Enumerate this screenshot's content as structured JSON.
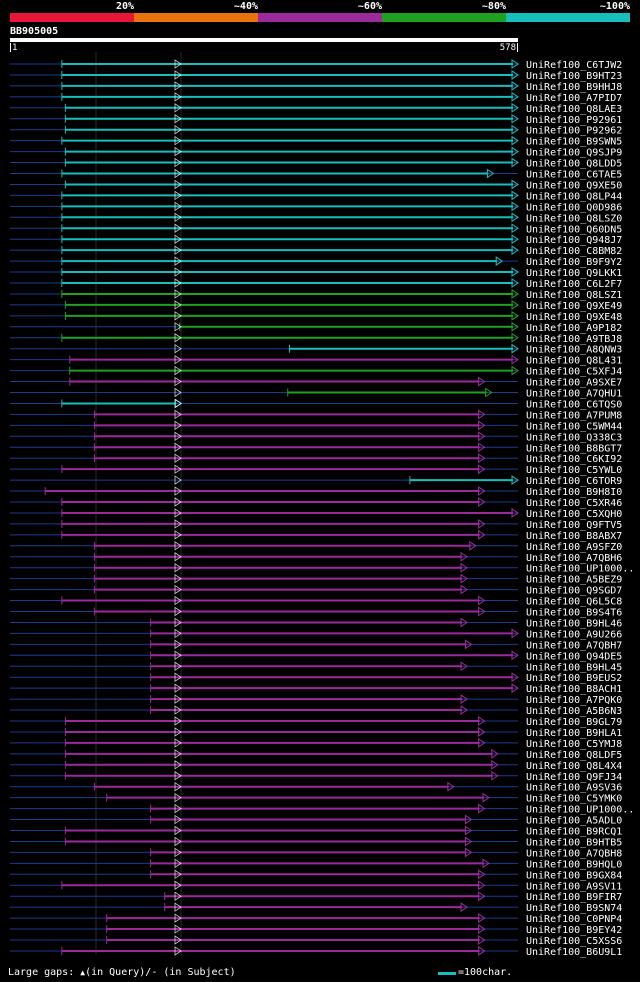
{
  "legend": [
    {
      "label": "20%",
      "color": "#e8173a"
    },
    {
      "label": "~40%",
      "color": "#e8720c"
    },
    {
      "label": "~60%",
      "color": "#9b2a9b"
    },
    {
      "label": "~80%",
      "color": "#1fa11f"
    },
    {
      "label": "~100%",
      "color": "#17bebb"
    }
  ],
  "query": {
    "id": "BB905005",
    "start": "1",
    "end": "578",
    "length": 578
  },
  "colors": {
    "cyan": "#17bebb",
    "green": "#1fa11f",
    "purple": "#9b2a9b",
    "orange": "#e8720c",
    "red": "#e8173a",
    "flank": "#1a3d8c",
    "gap_marker": "#ffe600",
    "grid": "#2a2a2a",
    "label": "#ffffff"
  },
  "hits": [
    {
      "label": "UniRef100_C6TJW2",
      "start": 59,
      "end": 578,
      "color": "cyan"
    },
    {
      "label": "UniRef100_B9HT23",
      "start": 59,
      "end": 578,
      "color": "cyan"
    },
    {
      "label": "UniRef100_B9HHJ8",
      "start": 59,
      "end": 578,
      "color": "cyan"
    },
    {
      "label": "UniRef100_A7PID7",
      "start": 59,
      "end": 578,
      "color": "cyan"
    },
    {
      "label": "UniRef100_Q8LAE3",
      "start": 63,
      "end": 578,
      "color": "cyan"
    },
    {
      "label": "UniRef100_P92961",
      "start": 63,
      "end": 578,
      "color": "cyan"
    },
    {
      "label": "UniRef100_P92962",
      "start": 63,
      "end": 578,
      "color": "cyan"
    },
    {
      "label": "UniRef100_B9SWN5",
      "start": 59,
      "end": 578,
      "color": "cyan"
    },
    {
      "label": "UniRef100_Q9SJP9",
      "start": 63,
      "end": 578,
      "color": "cyan"
    },
    {
      "label": "UniRef100_Q8LDD5",
      "start": 63,
      "end": 578,
      "color": "cyan"
    },
    {
      "label": "UniRef100_C6TAE5",
      "start": 59,
      "end": 550,
      "color": "cyan"
    },
    {
      "label": "UniRef100_Q9XE50",
      "start": 63,
      "end": 578,
      "color": "cyan"
    },
    {
      "label": "UniRef100_Q8LP44",
      "start": 59,
      "end": 578,
      "color": "cyan"
    },
    {
      "label": "UniRef100_Q0D986",
      "start": 59,
      "end": 578,
      "color": "cyan"
    },
    {
      "label": "UniRef100_Q8LSZ0",
      "start": 59,
      "end": 578,
      "color": "cyan"
    },
    {
      "label": "UniRef100_Q60DN5",
      "start": 59,
      "end": 578,
      "color": "cyan"
    },
    {
      "label": "UniRef100_Q948J7",
      "start": 59,
      "end": 578,
      "color": "cyan"
    },
    {
      "label": "UniRef100_C8BM82",
      "start": 59,
      "end": 578,
      "color": "cyan"
    },
    {
      "label": "UniRef100_B9F9Y2",
      "start": 59,
      "end": 560,
      "color": "cyan"
    },
    {
      "label": "UniRef100_Q9LKK1",
      "start": 59,
      "end": 578,
      "color": "cyan"
    },
    {
      "label": "UniRef100_C6L2F7",
      "start": 59,
      "end": 578,
      "color": "cyan"
    },
    {
      "label": "UniRef100_Q8LSZ1",
      "start": 59,
      "end": 578,
      "color": "green"
    },
    {
      "label": "UniRef100_Q9XE49",
      "start": 63,
      "end": 578,
      "color": "green"
    },
    {
      "label": "UniRef100_Q9XE48",
      "start": 63,
      "end": 578,
      "color": "green"
    },
    {
      "label": "UniRef100_A9P182",
      "start": 193,
      "end": 578,
      "color": "green"
    },
    {
      "label": "UniRef100_A9TBJ8",
      "start": 59,
      "end": 578,
      "color": "green"
    },
    {
      "label": "UniRef100_A8QNW3",
      "start": 318,
      "end": 578,
      "color": "cyan"
    },
    {
      "label": "UniRef100_Q8L431",
      "start": 68,
      "end": 578,
      "color": "purple"
    },
    {
      "label": "UniRef100_C5XFJ4",
      "start": 68,
      "end": 578,
      "color": "green"
    },
    {
      "label": "UniRef100_A9SXE7",
      "start": 68,
      "end": 540,
      "color": "purple"
    },
    {
      "label": "UniRef100_A7QHU1",
      "start": 316,
      "end": 548,
      "color": "green"
    },
    {
      "label": "UniRef100_C6TQS0",
      "start": 59,
      "end": 195,
      "color": "cyan"
    },
    {
      "label": "UniRef100_A7PUM8",
      "start": 96,
      "end": 540,
      "color": "purple"
    },
    {
      "label": "UniRef100_C5WM44",
      "start": 96,
      "end": 540,
      "color": "purple"
    },
    {
      "label": "UniRef100_Q338C3",
      "start": 96,
      "end": 540,
      "color": "purple"
    },
    {
      "label": "UniRef100_B8BGT7",
      "start": 96,
      "end": 540,
      "color": "purple"
    },
    {
      "label": "UniRef100_C6KI92",
      "start": 96,
      "end": 540,
      "color": "purple"
    },
    {
      "label": "UniRef100_C5YWL0",
      "start": 59,
      "end": 540,
      "color": "purple"
    },
    {
      "label": "UniRef100_C6TOR9",
      "start": 455,
      "end": 578,
      "color": "cyan"
    },
    {
      "label": "UniRef100_B9H8I0",
      "start": 40,
      "end": 540,
      "color": "purple"
    },
    {
      "label": "UniRef100_C5XR46",
      "start": 59,
      "end": 540,
      "color": "purple"
    },
    {
      "label": "UniRef100_C5XQH0",
      "start": 59,
      "end": 578,
      "color": "purple"
    },
    {
      "label": "UniRef100_Q9FTV5",
      "start": 59,
      "end": 540,
      "color": "purple"
    },
    {
      "label": "UniRef100_B8ABX7",
      "start": 59,
      "end": 540,
      "color": "purple"
    },
    {
      "label": "UniRef100_A9SFZ0",
      "start": 96,
      "end": 530,
      "color": "purple"
    },
    {
      "label": "UniRef100_A7QBH6",
      "start": 96,
      "end": 520,
      "color": "purple"
    },
    {
      "label": "UniRef100_UP1000..",
      "start": 96,
      "end": 520,
      "color": "purple"
    },
    {
      "label": "UniRef100_A5BEZ9",
      "start": 96,
      "end": 520,
      "color": "purple"
    },
    {
      "label": "UniRef100_Q9SGD7",
      "start": 96,
      "end": 520,
      "color": "purple"
    },
    {
      "label": "UniRef100_Q6L5C8",
      "start": 59,
      "end": 540,
      "color": "purple"
    },
    {
      "label": "UniRef100_B9S4T6",
      "start": 96,
      "end": 540,
      "color": "purple"
    },
    {
      "label": "UniRef100_B9HL46",
      "start": 160,
      "end": 520,
      "color": "purple"
    },
    {
      "label": "UniRef100_A9U266",
      "start": 160,
      "end": 578,
      "color": "purple"
    },
    {
      "label": "UniRef100_A7QBH7",
      "start": 160,
      "end": 525,
      "color": "purple"
    },
    {
      "label": "UniRef100_Q94DE5",
      "start": 160,
      "end": 578,
      "color": "purple"
    },
    {
      "label": "UniRef100_B9HL45",
      "start": 160,
      "end": 520,
      "color": "purple"
    },
    {
      "label": "UniRef100_B9EUS2",
      "start": 160,
      "end": 578,
      "color": "purple"
    },
    {
      "label": "UniRef100_B8ACH1",
      "start": 160,
      "end": 578,
      "color": "purple"
    },
    {
      "label": "UniRef100_A7PQK0",
      "start": 160,
      "end": 520,
      "color": "purple"
    },
    {
      "label": "UniRef100_A5B6N3",
      "start": 160,
      "end": 520,
      "color": "purple"
    },
    {
      "label": "UniRef100_B9GL79",
      "start": 63,
      "end": 540,
      "color": "purple"
    },
    {
      "label": "UniRef100_B9HLA1",
      "start": 63,
      "end": 540,
      "color": "purple"
    },
    {
      "label": "UniRef100_C5YMJ8",
      "start": 63,
      "end": 540,
      "color": "purple"
    },
    {
      "label": "UniRef100_Q8LDF5",
      "start": 63,
      "end": 555,
      "color": "purple"
    },
    {
      "label": "UniRef100_Q8L4X4",
      "start": 63,
      "end": 555,
      "color": "purple"
    },
    {
      "label": "UniRef100_Q9FJ34",
      "start": 63,
      "end": 555,
      "color": "purple"
    },
    {
      "label": "UniRef100_A9SV36",
      "start": 96,
      "end": 505,
      "color": "purple"
    },
    {
      "label": "UniRef100_C5YMK0",
      "start": 110,
      "end": 545,
      "color": "purple"
    },
    {
      "label": "UniRef100_UP1000..",
      "start": 160,
      "end": 540,
      "color": "purple"
    },
    {
      "label": "UniRef100_A5ADL0",
      "start": 160,
      "end": 525,
      "color": "purple"
    },
    {
      "label": "UniRef100_B9RCQ1",
      "start": 63,
      "end": 525,
      "color": "purple"
    },
    {
      "label": "UniRef100_B9HTB5",
      "start": 63,
      "end": 525,
      "color": "purple"
    },
    {
      "label": "UniRef100_A7QBH8",
      "start": 160,
      "end": 525,
      "color": "purple"
    },
    {
      "label": "UniRef100_B9HQL0",
      "start": 160,
      "end": 545,
      "color": "purple"
    },
    {
      "label": "UniRef100_B9GX84",
      "start": 160,
      "end": 540,
      "color": "purple"
    },
    {
      "label": "UniRef100_A9SV11",
      "start": 59,
      "end": 540,
      "color": "purple"
    },
    {
      "label": "UniRef100_B9FIR7",
      "start": 176,
      "end": 540,
      "color": "purple"
    },
    {
      "label": "UniRef100_B9SN74",
      "start": 176,
      "end": 520,
      "color": "purple"
    },
    {
      "label": "UniRef100_C0PNP4",
      "start": 110,
      "end": 540,
      "color": "purple"
    },
    {
      "label": "UniRef100_B9EY42",
      "start": 110,
      "end": 540,
      "color": "purple"
    },
    {
      "label": "UniRef100_C5XSS6",
      "start": 110,
      "end": 540,
      "color": "purple"
    },
    {
      "label": "UniRef100_B6U9L1",
      "start": 59,
      "end": 540,
      "color": "purple"
    }
  ],
  "footer": {
    "gaps_prefix": "Large gaps: ",
    "gaps_query_marker": "▲",
    "gaps_query_text": "(in Query)/",
    "gaps_subject_marker": "-",
    "gaps_subject_text": " (in Subject)",
    "scale_label": "=100char."
  }
}
